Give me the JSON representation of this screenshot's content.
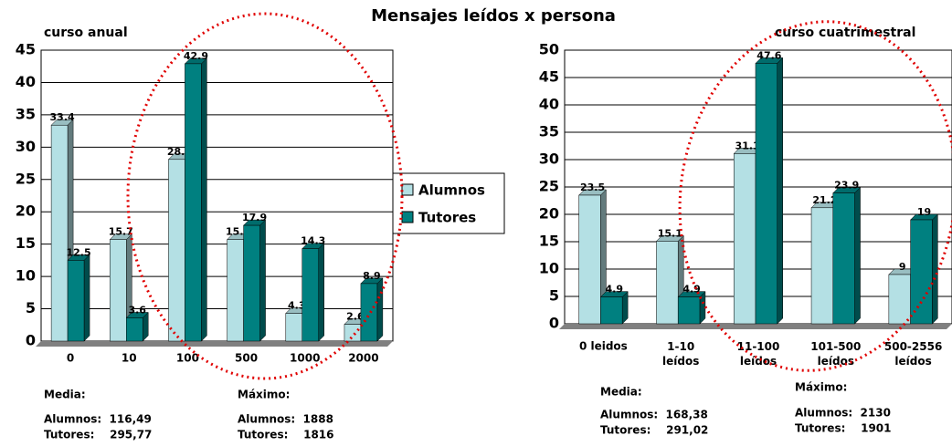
{
  "title": "Mensajes leídos x persona",
  "chart_data": [
    {
      "type": "bar",
      "title": "curso anual",
      "categories": [
        "0",
        "10",
        "100",
        "500",
        "1000",
        "2000"
      ],
      "series": [
        {
          "name": "Alumnos",
          "color": "#b4e0e4",
          "values": [
            33.4,
            15.7,
            28.1,
            15.7,
            4.3,
            2.6
          ]
        },
        {
          "name": "Tutores",
          "color": "#008080",
          "values": [
            12.5,
            3.6,
            42.9,
            17.9,
            14.3,
            8.9
          ]
        }
      ],
      "ylim": [
        0,
        45
      ],
      "yticks": [
        0,
        5,
        10,
        15,
        20,
        25,
        30,
        35,
        40,
        45
      ],
      "grid": true,
      "notes": [
        "Media:",
        "Alumnos:  116,49",
        "Tutores:    295,77",
        "Máximo:",
        "Alumnos:  1888",
        "Tutores:    1816"
      ]
    },
    {
      "type": "bar",
      "title": "curso cuatrimestral",
      "categories": [
        "0 leidos",
        "1-10 leídos",
        "11-100 leídos",
        "101-500 leídos",
        "500-2556 leídos"
      ],
      "series": [
        {
          "color": "#b4e0e4",
          "values": [
            23.5,
            15.1,
            31.1,
            21.2,
            9
          ]
        },
        {
          "color": "#008080",
          "values": [
            4.9,
            4.9,
            47.6,
            23.9,
            19
          ]
        }
      ],
      "ylim": [
        0,
        50
      ],
      "yticks": [
        0,
        5,
        10,
        15,
        20,
        25,
        30,
        35,
        40,
        45,
        50
      ],
      "grid": true,
      "notes": [
        "Media:",
        "Alumnos:  168,38",
        "Tutores:    291,02",
        "Máximo:",
        "Alumnos:  2130",
        "Tutores:    1901"
      ]
    }
  ]
}
